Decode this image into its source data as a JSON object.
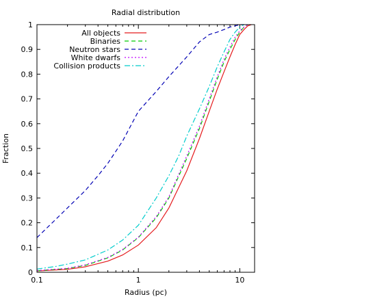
{
  "chart_data": {
    "type": "line",
    "title": "Radial distribution",
    "xlabel": "Radius (pc)",
    "ylabel": "Fraction",
    "x_scale": "log",
    "xlim": [
      0.1,
      14
    ],
    "ylim": [
      0,
      1
    ],
    "x_ticks": [
      0.1,
      1,
      10
    ],
    "x_tick_labels": [
      "0.1",
      "1",
      "10"
    ],
    "y_ticks": [
      0,
      0.1,
      0.2,
      0.3,
      0.4,
      0.5,
      0.6,
      0.7,
      0.8,
      0.9,
      1
    ],
    "y_tick_labels": [
      "0",
      "0.1",
      "0.2",
      "0.3",
      "0.4",
      "0.5",
      "0.6",
      "0.7",
      "0.8",
      "0.9",
      "1"
    ],
    "grid": false,
    "legend_position": "top-left",
    "series": [
      {
        "name": "All objects",
        "color": "#e41a1c",
        "dash": "solid",
        "x": [
          0.1,
          0.2,
          0.3,
          0.5,
          0.7,
          1,
          1.5,
          2,
          3,
          4,
          5,
          6,
          7,
          8,
          9,
          10,
          11,
          12,
          13
        ],
        "y": [
          0.005,
          0.012,
          0.022,
          0.045,
          0.07,
          0.11,
          0.18,
          0.26,
          0.41,
          0.54,
          0.65,
          0.74,
          0.81,
          0.87,
          0.92,
          0.96,
          0.98,
          0.995,
          1.0
        ]
      },
      {
        "name": "Binaries",
        "color": "#00cc00",
        "dash": "dashed",
        "x": [
          0.1,
          0.2,
          0.3,
          0.5,
          0.7,
          1,
          1.5,
          2,
          3,
          4,
          5,
          6,
          7,
          8,
          9,
          10,
          11,
          12
        ],
        "y": [
          0.006,
          0.015,
          0.028,
          0.058,
          0.09,
          0.14,
          0.22,
          0.3,
          0.46,
          0.58,
          0.69,
          0.78,
          0.85,
          0.9,
          0.94,
          0.97,
          0.99,
          1.0
        ]
      },
      {
        "name": "Neutron stars",
        "color": "#0000b4",
        "dash": "dashed",
        "x": [
          0.1,
          0.15,
          0.2,
          0.3,
          0.4,
          0.5,
          0.7,
          1,
          1.5,
          2,
          3,
          4,
          5,
          6,
          7,
          8,
          9,
          10,
          11
        ],
        "y": [
          0.14,
          0.21,
          0.26,
          0.33,
          0.39,
          0.44,
          0.53,
          0.65,
          0.73,
          0.79,
          0.87,
          0.93,
          0.96,
          0.97,
          0.98,
          0.99,
          0.995,
          1.0,
          1.0
        ]
      },
      {
        "name": "White dwarfs",
        "color": "#c000ff",
        "dash": "dotted",
        "x": [
          0.1,
          0.2,
          0.3,
          0.5,
          0.7,
          1,
          1.5,
          2,
          3,
          4,
          5,
          6,
          7,
          8,
          9,
          10,
          11,
          12
        ],
        "y": [
          0.007,
          0.016,
          0.03,
          0.06,
          0.092,
          0.142,
          0.225,
          0.305,
          0.47,
          0.59,
          0.7,
          0.79,
          0.86,
          0.91,
          0.95,
          0.975,
          0.99,
          1.0
        ]
      },
      {
        "name": "Collision products",
        "color": "#00cccc",
        "dash": "dashdot",
        "x": [
          0.1,
          0.15,
          0.2,
          0.3,
          0.5,
          0.7,
          1,
          1.5,
          2,
          2.5,
          3,
          4,
          5,
          6,
          7,
          8,
          9,
          10,
          11
        ],
        "y": [
          0.013,
          0.023,
          0.033,
          0.05,
          0.09,
          0.13,
          0.19,
          0.3,
          0.39,
          0.47,
          0.55,
          0.66,
          0.75,
          0.83,
          0.89,
          0.94,
          0.97,
          0.99,
          1.0
        ]
      }
    ]
  }
}
